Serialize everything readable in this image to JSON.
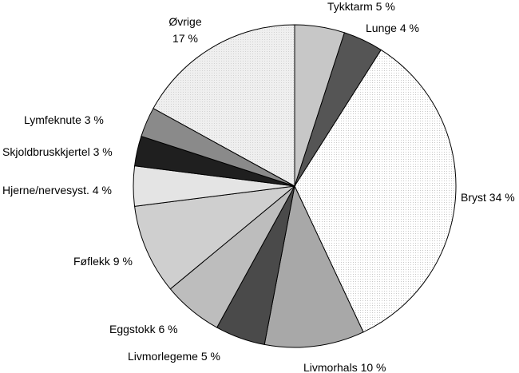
{
  "chart_data": {
    "type": "pie",
    "start": "12 o'clock",
    "direction": "clockwise",
    "slices": [
      {
        "label": "Tykktarm",
        "value": 5,
        "text": "Tykktarm 5 %",
        "fill": "#c7c7c7"
      },
      {
        "label": "Lunge",
        "value": 4,
        "text": "Lunge 4 %",
        "fill": "#555555"
      },
      {
        "label": "Bryst",
        "value": 34,
        "text": "Bryst 34 %",
        "fill": "#ffffff"
      },
      {
        "label": "Livmorhals",
        "value": 10,
        "text": "Livmorhals 10 %",
        "fill": "#a8a8a8"
      },
      {
        "label": "Livmorlegeme",
        "value": 5,
        "text": "Livmorlegeme 5 %",
        "fill": "#4a4a4a"
      },
      {
        "label": "Eggstokk",
        "value": 6,
        "text": "Eggstokk 6 %",
        "fill": "#bdbdbd"
      },
      {
        "label": "Føflekk",
        "value": 9,
        "text": "Føflekk 9 %",
        "fill": "#cfcfcf"
      },
      {
        "label": "Hjerne/nervesyst.",
        "value": 4,
        "text": "Hjerne/nervesyst. 4 %",
        "fill": "#e4e4e4"
      },
      {
        "label": "Skjoldbruskkjertel",
        "value": 3,
        "text": "Skjoldbruskkjertel 3 %",
        "fill": "#1f1f1f"
      },
      {
        "label": "Lymfeknute",
        "value": 3,
        "text": "Lymfeknute 3 %",
        "fill": "#8a8a8a"
      },
      {
        "label": "Øvrige",
        "value": 17,
        "text": "Øvrige 17 %",
        "fill": "#efefef",
        "text_lines": [
          "Øvrige",
          "17 %"
        ]
      }
    ]
  }
}
